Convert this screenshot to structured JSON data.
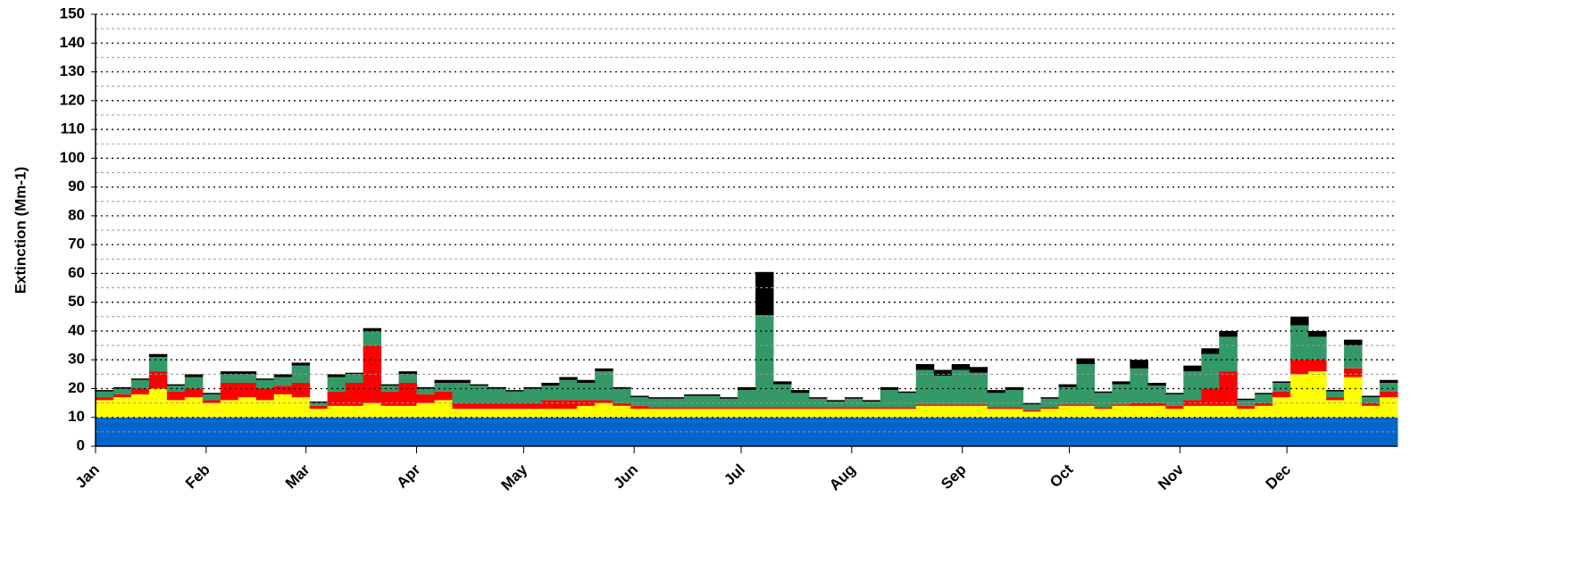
{
  "chart_data": {
    "type": "stacked_bar",
    "y_label": "Extinction (Mm-1)",
    "x": [
      1,
      6,
      11,
      16,
      21,
      26,
      31,
      36,
      41,
      46,
      51,
      56,
      61,
      66,
      71,
      76,
      81,
      86,
      91,
      96,
      101,
      106,
      111,
      116,
      121,
      126,
      131,
      136,
      141,
      146,
      151,
      156,
      161,
      166,
      171,
      176,
      181,
      186,
      191,
      196,
      201,
      206,
      211,
      216,
      221,
      226,
      231,
      236,
      241,
      246,
      251,
      256,
      261,
      266,
      271,
      276,
      281,
      286,
      291,
      296,
      301,
      306,
      311,
      316,
      321,
      326,
      331,
      336,
      341,
      346,
      351,
      356,
      361
    ],
    "xlim": [
      1,
      366
    ],
    "xticks": [
      {
        "value": 1,
        "label": "Jan"
      },
      {
        "value": 32,
        "label": "Feb"
      },
      {
        "value": 60,
        "label": "Mar"
      },
      {
        "value": 91,
        "label": "Apr"
      },
      {
        "value": 121,
        "label": "May"
      },
      {
        "value": 152,
        "label": "Jun"
      },
      {
        "value": 182,
        "label": "Jul"
      },
      {
        "value": 213,
        "label": "Aug"
      },
      {
        "value": 244,
        "label": "Sep"
      },
      {
        "value": 274,
        "label": "Oct"
      },
      {
        "value": 305,
        "label": "Nov"
      },
      {
        "value": 335,
        "label": "Dec"
      }
    ],
    "ylim": [
      0,
      150
    ],
    "yticks": [
      0,
      10,
      20,
      30,
      40,
      50,
      60,
      70,
      80,
      90,
      100,
      110,
      120,
      130,
      140,
      150
    ],
    "minor_yticks": [
      5,
      15,
      25,
      35,
      45,
      55,
      65,
      75,
      85,
      95,
      105,
      115,
      125,
      135,
      145
    ],
    "grid": true,
    "series": [
      {
        "color": "#0066cc",
        "values": [
          10,
          10,
          10,
          10,
          10,
          10,
          10,
          10,
          10,
          10,
          10,
          10,
          10,
          10,
          10,
          10,
          10,
          10,
          10,
          10,
          10,
          10,
          10,
          10,
          10,
          10,
          10,
          10,
          10,
          10,
          10,
          10,
          10,
          10,
          10,
          10,
          10,
          10,
          10,
          10,
          10,
          10,
          10,
          10,
          10,
          10,
          10,
          10,
          10,
          10,
          10,
          10,
          10,
          10,
          10,
          10,
          10,
          10,
          10,
          10,
          10,
          10,
          10,
          10,
          10,
          10,
          10,
          10,
          10,
          10,
          10,
          10,
          10
        ]
      },
      {
        "color": "#ffff00",
        "values": [
          6,
          7,
          8,
          10,
          6,
          7,
          5,
          6,
          7,
          6,
          8,
          7,
          3,
          4,
          4,
          5,
          4,
          4,
          5,
          6,
          3,
          3,
          3,
          3,
          3,
          3,
          3,
          4,
          5,
          4,
          3,
          3,
          3,
          3,
          3,
          3,
          3,
          3,
          3,
          3,
          3,
          3,
          3,
          3,
          3,
          3,
          4,
          4,
          4,
          4,
          3,
          3,
          2,
          3,
          4,
          4,
          3,
          4,
          4,
          4,
          3,
          4,
          4,
          4,
          3,
          4,
          7,
          15,
          16,
          6,
          14,
          4,
          7
        ]
      },
      {
        "color": "#ff0000",
        "values": [
          1,
          1,
          2,
          6,
          3,
          3,
          1,
          6,
          5,
          4,
          3,
          5,
          1,
          5,
          8,
          20,
          5,
          8,
          3,
          3,
          2,
          2,
          2,
          2,
          2,
          3,
          3,
          2,
          1,
          1,
          1,
          0.5,
          0.5,
          0.5,
          0.5,
          0.5,
          0.5,
          0.5,
          0.5,
          0.5,
          0.5,
          0.5,
          0.5,
          0.5,
          0.5,
          0.5,
          0.5,
          0.5,
          0.5,
          0.5,
          0.5,
          0.5,
          0.5,
          0.5,
          0.5,
          0.5,
          0.5,
          0.5,
          1,
          1,
          1,
          2,
          6,
          12,
          1,
          1,
          2,
          5,
          4,
          1,
          3,
          1,
          2
        ]
      },
      {
        "color": "#339966",
        "values": [
          2,
          2,
          3,
          5,
          2,
          4,
          2,
          3,
          3,
          3,
          3,
          6,
          1,
          5,
          3,
          5,
          2,
          3,
          2,
          3,
          7,
          6,
          5,
          4,
          5,
          5,
          7,
          6,
          10,
          5,
          3,
          3,
          3,
          4,
          4,
          3,
          6,
          32,
          8,
          5,
          3,
          2,
          3,
          2,
          6,
          5,
          12,
          10,
          12,
          11,
          5,
          6,
          2,
          3,
          6,
          14,
          5,
          7,
          12,
          6,
          4,
          10,
          12,
          12,
          2,
          3,
          3,
          12,
          8,
          2,
          8,
          2,
          3
        ]
      },
      {
        "color": "#000000",
        "values": [
          0.5,
          0.5,
          0.5,
          1,
          0.5,
          1,
          0.5,
          1,
          1,
          0.5,
          1,
          1,
          0.5,
          1,
          0.5,
          1,
          0.5,
          1,
          0.5,
          1,
          1,
          0.5,
          0.5,
          0.5,
          0.5,
          1,
          1,
          1,
          1,
          0.5,
          0.5,
          0.5,
          0.5,
          0.5,
          0.5,
          0.5,
          1,
          15,
          1,
          1,
          0.5,
          0.5,
          0.5,
          0.5,
          1,
          0.5,
          2,
          2,
          2,
          2,
          1,
          1,
          0.5,
          0.5,
          1,
          2,
          0.5,
          1,
          3,
          1,
          0.5,
          2,
          2,
          2,
          0.5,
          0.5,
          0.5,
          3,
          2,
          0.5,
          2,
          0.5,
          1
        ]
      }
    ]
  }
}
